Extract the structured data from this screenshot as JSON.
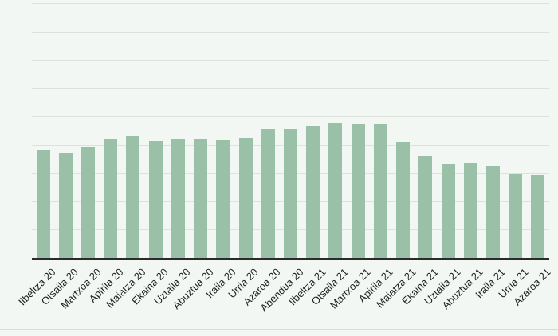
{
  "chart_data": {
    "type": "bar",
    "title": "",
    "xlabel": "",
    "ylabel": "",
    "categories": [
      "Ilbeltza 20",
      "Otsaila 20",
      "Martxoa 20",
      "Apirila 20",
      "Maiatza 20",
      "Ekaina 20",
      "Uztaila 20",
      "Abuztua 20",
      "Iraila 20",
      "Urria 20",
      "Azaroa 20",
      "Abendua 20",
      "Ilbeltza 21",
      "Otsaila 21",
      "Martxoa 21",
      "Apirila 21",
      "Maiatza 21",
      "Ekaina 21",
      "Uztaila 21",
      "Abuztua 21",
      "Iraila 21",
      "Urria 21",
      "Azaroa 21"
    ],
    "values": [
      42.3,
      41.1,
      43.9,
      46.7,
      47.7,
      45.8,
      46.7,
      47.0,
      46.1,
      47.3,
      50.5,
      50.5,
      52.0,
      52.7,
      52.4,
      52.4,
      45.5,
      40.1,
      37.0,
      37.3,
      36.4,
      32.9,
      32.6
    ],
    "values_units": "percent_of_plot_height",
    "ylim": [
      0,
      100
    ],
    "y_tick_labels": [],
    "gridline_count": 9,
    "grid": "horizontal",
    "legend_position": "none",
    "x_tick_rotation_deg": -45,
    "colors": {
      "bar_fill": "#9ac1a7",
      "background": "#f3f7f3",
      "gridline": "#dce3dc",
      "axis_line": "#2b2b2b",
      "tick_label": "#1f1f1f",
      "bottom_divider": "#d7dcd7"
    }
  }
}
